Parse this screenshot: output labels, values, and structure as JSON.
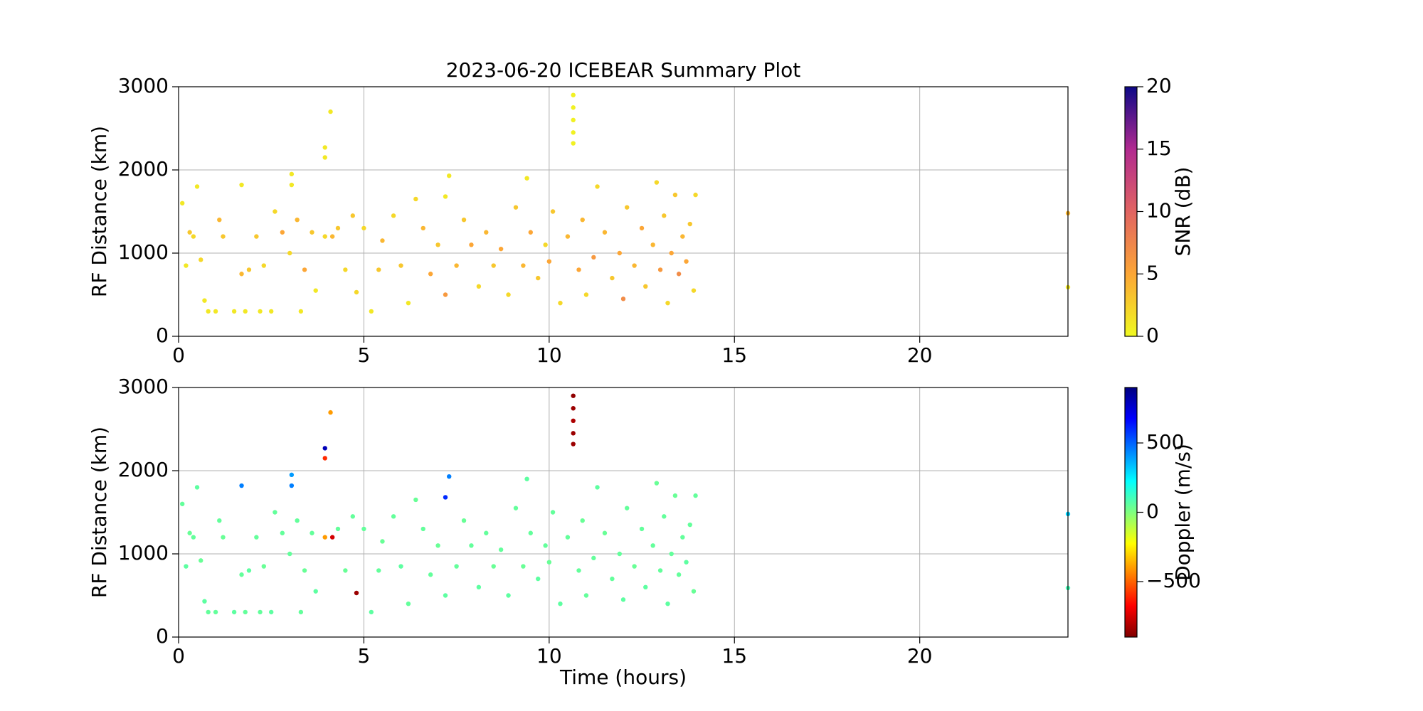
{
  "chart_data": [
    {
      "type": "scatter",
      "title": "2023-06-20 ICEBEAR Summary Plot",
      "ylabel": "RF Distance (km)",
      "xlim": [
        0,
        24
      ],
      "xticks": [
        0,
        5,
        10,
        15,
        20
      ],
      "ylim": [
        0,
        3000
      ],
      "yticks": [
        0,
        1000,
        2000,
        3000
      ],
      "grid": true,
      "colorbar": {
        "label": "SNR (dB)",
        "clim": [
          0,
          20
        ],
        "ticks": [
          0,
          5,
          10,
          15,
          20
        ],
        "colormap": [
          "#f0f921",
          "#fca636",
          "#e16462",
          "#b12a90",
          "#0d0887"
        ]
      },
      "x": [
        0.1,
        0.2,
        0.3,
        0.4,
        0.5,
        0.6,
        0.7,
        0.8,
        1.0,
        1.1,
        1.2,
        1.5,
        1.7,
        1.7,
        1.8,
        1.9,
        2.1,
        2.2,
        2.3,
        2.5,
        2.6,
        2.8,
        3.05,
        3.05,
        3.0,
        3.2,
        3.3,
        3.4,
        3.6,
        3.7,
        3.95,
        3.95,
        3.95,
        4.1,
        4.15,
        4.3,
        4.5,
        4.7,
        4.8,
        5.0,
        5.2,
        5.4,
        5.5,
        5.8,
        6.0,
        6.2,
        6.4,
        6.6,
        6.8,
        7.0,
        7.2,
        7.3,
        7.2,
        7.5,
        7.7,
        7.9,
        8.1,
        8.3,
        8.5,
        8.7,
        8.9,
        9.1,
        9.3,
        9.4,
        9.5,
        9.7,
        9.9,
        10.0,
        10.1,
        10.3,
        10.5,
        10.65,
        10.65,
        10.65,
        10.65,
        10.65,
        10.8,
        10.9,
        11.0,
        11.2,
        11.3,
        11.5,
        11.7,
        11.9,
        12.0,
        12.1,
        12.3,
        12.5,
        12.6,
        12.8,
        12.9,
        13.0,
        13.1,
        13.2,
        13.3,
        13.4,
        13.5,
        13.6,
        13.7,
        13.8,
        13.9,
        13.95,
        24.0,
        24.0
      ],
      "y": [
        1600,
        850,
        1250,
        1200,
        1800,
        920,
        430,
        300,
        300,
        1400,
        1200,
        300,
        1820,
        750,
        300,
        800,
        1200,
        300,
        850,
        300,
        1500,
        1250,
        1950,
        1820,
        1000,
        1400,
        300,
        800,
        1250,
        550,
        2150,
        2270,
        1200,
        2700,
        1200,
        1300,
        800,
        1450,
        530,
        1300,
        300,
        800,
        1150,
        1450,
        850,
        400,
        1650,
        1300,
        750,
        1100,
        1680,
        1930,
        500,
        850,
        1400,
        1100,
        600,
        1250,
        850,
        1050,
        500,
        1550,
        850,
        1900,
        1250,
        700,
        1100,
        900,
        1500,
        400,
        1200,
        2320,
        2450,
        2600,
        2750,
        2900,
        800,
        1400,
        500,
        950,
        1800,
        1250,
        700,
        1000,
        450,
        1550,
        850,
        1300,
        600,
        1100,
        1850,
        800,
        1450,
        400,
        1000,
        1700,
        750,
        1200,
        900,
        1350,
        550,
        1700,
        1480,
        590
      ],
      "c": [
        1,
        1,
        3,
        2,
        1,
        2,
        1,
        1,
        1,
        4,
        3,
        1,
        1,
        4,
        1,
        3,
        3,
        1,
        2,
        1,
        2,
        5,
        1,
        1,
        2,
        4,
        1,
        5,
        3,
        1,
        1,
        1,
        2,
        1,
        4,
        3,
        2,
        3,
        2,
        2,
        1,
        3,
        4,
        2,
        3,
        1,
        2,
        4,
        5,
        3,
        1,
        1,
        6,
        4,
        3,
        5,
        2,
        4,
        3,
        5,
        2,
        3,
        4,
        1,
        5,
        3,
        2,
        5,
        3,
        2,
        4,
        0.5,
        0.5,
        0.5,
        0.5,
        0.5,
        5,
        4,
        2,
        6,
        2,
        4,
        3,
        5,
        7,
        3,
        4,
        5,
        3,
        4,
        2,
        6,
        3,
        2,
        5,
        3,
        7,
        4,
        5,
        3,
        2,
        2,
        4,
        1
      ]
    },
    {
      "type": "scatter",
      "ylabel": "RF Distance (km)",
      "xlabel": "Time (hours)",
      "xlim": [
        0,
        24
      ],
      "xticks": [
        0,
        5,
        10,
        15,
        20
      ],
      "ylim": [
        0,
        3000
      ],
      "yticks": [
        0,
        1000,
        2000,
        3000
      ],
      "grid": true,
      "colorbar": {
        "label": "Doppler (m/s)",
        "clim": [
          -900,
          900
        ],
        "ticks": [
          {
            "value": -500,
            "label": "−500"
          },
          0,
          500
        ],
        "colormap": [
          "#7f0000",
          "#ff0000",
          "#ff7f00",
          "#ffff00",
          "#7fff7f",
          "#00ffff",
          "#007fff",
          "#0000ff",
          "#00007f"
        ]
      },
      "x": [
        0.1,
        0.2,
        0.3,
        0.4,
        0.5,
        0.6,
        0.7,
        0.8,
        1.0,
        1.1,
        1.2,
        1.5,
        1.7,
        1.7,
        1.8,
        1.9,
        2.1,
        2.2,
        2.3,
        2.5,
        2.6,
        2.8,
        3.05,
        3.05,
        3.0,
        3.2,
        3.3,
        3.4,
        3.6,
        3.7,
        3.95,
        3.95,
        3.95,
        4.1,
        4.15,
        4.3,
        4.5,
        4.7,
        4.8,
        5.0,
        5.2,
        5.4,
        5.5,
        5.8,
        6.0,
        6.2,
        6.4,
        6.6,
        6.8,
        7.0,
        7.2,
        7.3,
        7.2,
        7.5,
        7.7,
        7.9,
        8.1,
        8.3,
        8.5,
        8.7,
        8.9,
        9.1,
        9.3,
        9.4,
        9.5,
        9.7,
        9.9,
        10.0,
        10.1,
        10.3,
        10.5,
        10.65,
        10.65,
        10.65,
        10.65,
        10.65,
        10.8,
        10.9,
        11.0,
        11.2,
        11.3,
        11.5,
        11.7,
        11.9,
        12.0,
        12.1,
        12.3,
        12.5,
        12.6,
        12.8,
        12.9,
        13.0,
        13.1,
        13.2,
        13.3,
        13.4,
        13.5,
        13.6,
        13.7,
        13.8,
        13.9,
        13.95,
        24.0,
        24.0
      ],
      "y": [
        1600,
        850,
        1250,
        1200,
        1800,
        920,
        430,
        300,
        300,
        1400,
        1200,
        300,
        1820,
        750,
        300,
        800,
        1200,
        300,
        850,
        300,
        1500,
        1250,
        1950,
        1820,
        1000,
        1400,
        300,
        800,
        1250,
        550,
        2150,
        2270,
        1200,
        2700,
        1200,
        1300,
        800,
        1450,
        530,
        1300,
        300,
        800,
        1150,
        1450,
        850,
        400,
        1650,
        1300,
        750,
        1100,
        1680,
        1930,
        500,
        850,
        1400,
        1100,
        600,
        1250,
        850,
        1050,
        500,
        1550,
        850,
        1900,
        1250,
        700,
        1100,
        900,
        1500,
        400,
        1200,
        2320,
        2450,
        2600,
        2750,
        2900,
        800,
        1400,
        500,
        950,
        1800,
        1250,
        700,
        1000,
        450,
        1550,
        850,
        1300,
        600,
        1100,
        1850,
        800,
        1450,
        400,
        1000,
        1700,
        750,
        1200,
        900,
        1350,
        550,
        1700,
        1480,
        590
      ],
      "c": [
        50,
        60,
        40,
        50,
        60,
        40,
        60,
        50,
        50,
        50,
        40,
        60,
        450,
        50,
        50,
        60,
        50,
        50,
        40,
        60,
        50,
        50,
        400,
        450,
        50,
        50,
        50,
        40,
        50,
        60,
        -600,
        800,
        -400,
        -400,
        -750,
        50,
        40,
        50,
        -850,
        50,
        60,
        50,
        40,
        50,
        60,
        50,
        40,
        50,
        50,
        40,
        600,
        450,
        60,
        50,
        40,
        50,
        60,
        50,
        40,
        50,
        60,
        50,
        40,
        60,
        50,
        60,
        50,
        40,
        50,
        60,
        50,
        -850,
        -850,
        -820,
        -850,
        -870,
        50,
        40,
        50,
        50,
        60,
        40,
        50,
        50,
        60,
        50,
        40,
        50,
        60,
        50,
        40,
        50,
        50,
        60,
        50,
        40,
        50,
        50,
        60,
        50,
        40,
        50,
        300,
        100
      ]
    }
  ]
}
